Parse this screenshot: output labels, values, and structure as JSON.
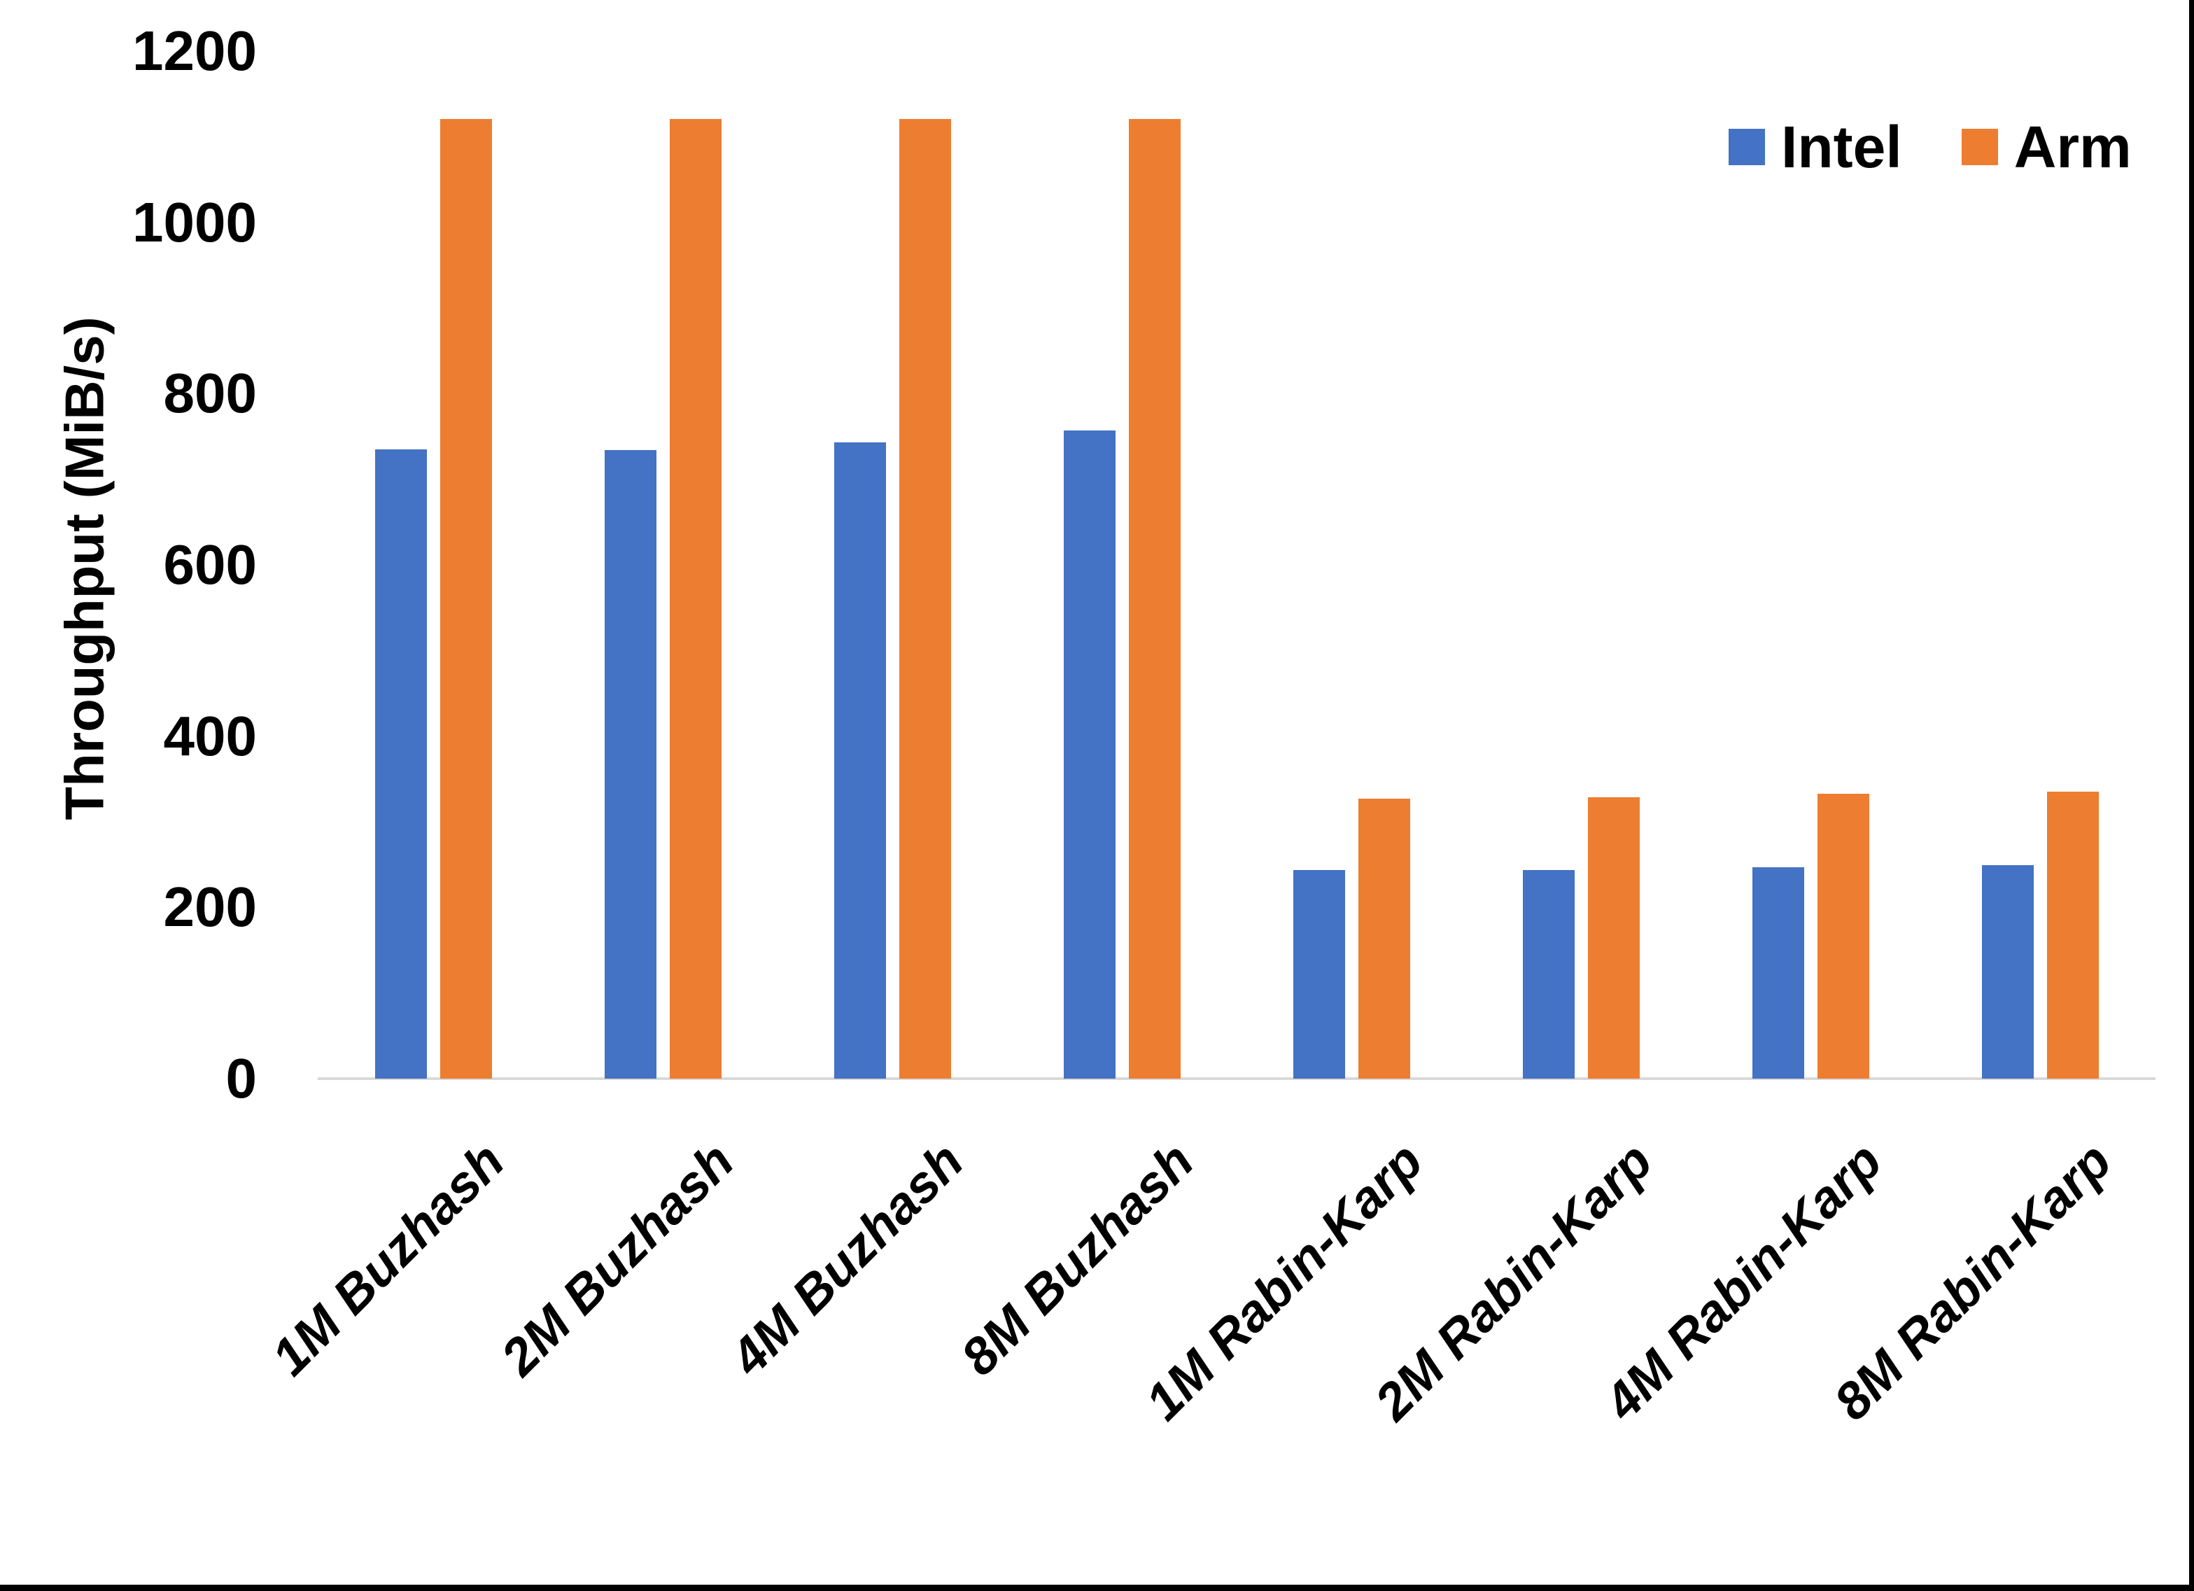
{
  "chart_data": {
    "type": "bar",
    "title": "",
    "xlabel": "",
    "ylabel": "Throughput (MiB/s)",
    "ylim": [
      0,
      1200
    ],
    "ytick_step": 200,
    "ytick_labels": [
      "0",
      "200",
      "400",
      "600",
      "800",
      "1000",
      "1200"
    ],
    "grid": false,
    "legend_position": "top-right",
    "categories": [
      "1M Buzhash",
      "2M Buzhash",
      "4M Buzhash",
      "8M Buzhash",
      "1M Rabin-Karp",
      "2M Rabin-Karp",
      "4M Rabin-Karp",
      "8M Rabin-Karp"
    ],
    "series": [
      {
        "name": "Intel",
        "color": "#4472C4",
        "values": [
          735,
          734,
          743,
          757,
          244,
          244,
          247,
          249
        ]
      },
      {
        "name": "Arm",
        "color": "#ED7D31",
        "values": [
          1121,
          1121,
          1121,
          1121,
          327,
          329,
          333,
          335
        ]
      }
    ],
    "axis_line_color": "#D9D9D9",
    "text_color": "#000000",
    "frame_border_color": "#000000"
  }
}
